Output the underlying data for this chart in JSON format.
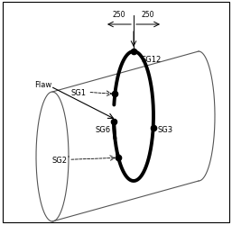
{
  "bg_color": "#ffffff",
  "border_color": "#000000",
  "flaw_label": "Flaw",
  "dim_250_left": "250",
  "dim_250_right": "250",
  "lw_pipe": 0.8,
  "lw_ring": 2.8,
  "pipe_lcolor": "#555555",
  "ring_color": "#000000",
  "dot_size": 4.5,
  "font_size": 6.0,
  "dim_font_size": 5.5
}
